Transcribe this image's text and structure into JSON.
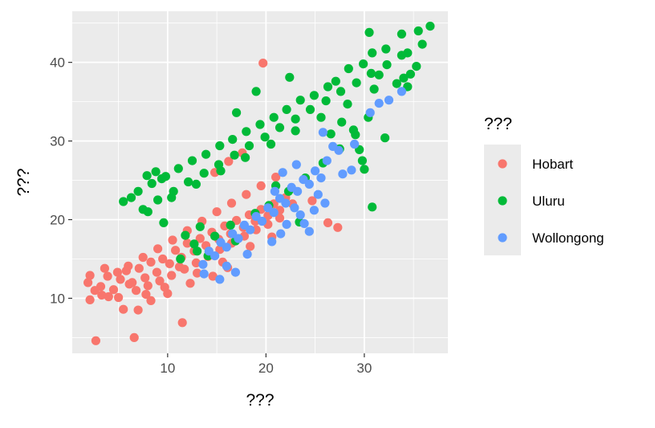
{
  "chart_data": {
    "type": "scatter",
    "title": "",
    "xlabel": "???",
    "ylabel": "???",
    "xlim": [
      0.3,
      38.5
    ],
    "ylim": [
      3.0,
      46.5
    ],
    "x_ticks": [
      10,
      20,
      30
    ],
    "y_ticks": [
      10,
      20,
      30,
      40
    ],
    "grid": true,
    "background": "#ebebeb",
    "legend": {
      "title": "???",
      "position": "right"
    },
    "series": [
      {
        "name": "Hobart",
        "color": "#F8766D",
        "points": [
          [
            2.7,
            4.6
          ],
          [
            6.6,
            5.0
          ],
          [
            11.5,
            6.9
          ],
          [
            5.5,
            8.6
          ],
          [
            2.1,
            9.8
          ],
          [
            7.0,
            8.5
          ],
          [
            4.0,
            10.2
          ],
          [
            3.2,
            11.5
          ],
          [
            1.9,
            12.0
          ],
          [
            2.1,
            12.9
          ],
          [
            8.3,
            9.7
          ],
          [
            19.7,
            39.9
          ],
          [
            27.3,
            19.0
          ],
          [
            26.3,
            19.6
          ],
          [
            24.7,
            22.4
          ],
          [
            6.1,
            11.8
          ],
          [
            3.3,
            10.4
          ],
          [
            3.9,
            12.8
          ],
          [
            4.5,
            11.1
          ],
          [
            5.2,
            12.4
          ],
          [
            5.8,
            13.5
          ],
          [
            6.4,
            12.0
          ],
          [
            7.1,
            13.8
          ],
          [
            7.7,
            12.6
          ],
          [
            8.3,
            14.6
          ],
          [
            8.9,
            13.3
          ],
          [
            9.5,
            15.0
          ],
          [
            10.2,
            14.4
          ],
          [
            10.8,
            16.1
          ],
          [
            11.4,
            15.2
          ],
          [
            12.0,
            17.0
          ],
          [
            12.7,
            16.0
          ],
          [
            13.3,
            17.6
          ],
          [
            13.9,
            16.7
          ],
          [
            14.5,
            18.4
          ],
          [
            15.2,
            17.5
          ],
          [
            15.8,
            19.2
          ],
          [
            16.4,
            18.2
          ],
          [
            17.0,
            19.9
          ],
          [
            17.7,
            19.0
          ],
          [
            18.3,
            20.6
          ],
          [
            18.9,
            19.8
          ],
          [
            19.5,
            21.3
          ],
          [
            20.2,
            20.5
          ],
          [
            20.8,
            22.0
          ],
          [
            21.4,
            21.2
          ],
          [
            22.0,
            22.8
          ],
          [
            22.7,
            22.0
          ],
          [
            5.0,
            10.1
          ],
          [
            6.8,
            11.0
          ],
          [
            8.0,
            11.6
          ],
          [
            9.2,
            12.2
          ],
          [
            10.4,
            12.9
          ],
          [
            11.7,
            13.7
          ],
          [
            12.9,
            14.5
          ],
          [
            14.1,
            15.3
          ],
          [
            15.3,
            16.2
          ],
          [
            16.5,
            17.0
          ],
          [
            17.8,
            17.9
          ],
          [
            19.0,
            18.7
          ],
          [
            20.2,
            19.4
          ],
          [
            21.4,
            20.2
          ],
          [
            7.5,
            15.2
          ],
          [
            9.0,
            16.3
          ],
          [
            10.5,
            17.4
          ],
          [
            12.0,
            18.6
          ],
          [
            13.5,
            19.8
          ],
          [
            15.0,
            21.0
          ],
          [
            16.5,
            22.1
          ],
          [
            18.0,
            23.2
          ],
          [
            19.5,
            24.3
          ],
          [
            21.0,
            25.4
          ],
          [
            14.8,
            26.0
          ],
          [
            16.2,
            27.4
          ],
          [
            17.6,
            28.5
          ],
          [
            11.2,
            14.0
          ],
          [
            13.0,
            13.2
          ],
          [
            15.6,
            14.6
          ],
          [
            18.4,
            16.6
          ],
          [
            20.6,
            17.8
          ],
          [
            9.7,
            11.4
          ],
          [
            3.6,
            13.8
          ],
          [
            4.9,
            13.3
          ],
          [
            6.0,
            14.1
          ],
          [
            2.6,
            11.0
          ],
          [
            7.8,
            10.5
          ],
          [
            10.0,
            10.6
          ],
          [
            12.3,
            11.9
          ],
          [
            14.6,
            12.8
          ],
          [
            16.1,
            13.9
          ]
        ]
      },
      {
        "name": "Uluru",
        "color": "#00BA38",
        "points": [
          [
            36.7,
            44.6
          ],
          [
            35.5,
            44.0
          ],
          [
            35.9,
            42.3
          ],
          [
            34.4,
            41.2
          ],
          [
            33.8,
            43.6
          ],
          [
            32.2,
            41.7
          ],
          [
            30.8,
            41.2
          ],
          [
            31.5,
            38.4
          ],
          [
            29.9,
            39.8
          ],
          [
            28.4,
            39.2
          ],
          [
            27.1,
            37.6
          ],
          [
            26.3,
            36.9
          ],
          [
            24.9,
            35.8
          ],
          [
            23.5,
            35.2
          ],
          [
            22.1,
            34.0
          ],
          [
            20.8,
            33.0
          ],
          [
            19.4,
            32.1
          ],
          [
            18.0,
            31.2
          ],
          [
            16.6,
            30.2
          ],
          [
            15.3,
            29.4
          ],
          [
            13.9,
            28.3
          ],
          [
            12.5,
            27.5
          ],
          [
            11.1,
            26.5
          ],
          [
            9.8,
            25.5
          ],
          [
            8.4,
            24.6
          ],
          [
            7.0,
            23.6
          ],
          [
            6.3,
            22.8
          ],
          [
            5.5,
            22.3
          ],
          [
            7.5,
            21.3
          ],
          [
            9.0,
            22.5
          ],
          [
            10.6,
            23.6
          ],
          [
            12.1,
            24.8
          ],
          [
            13.7,
            25.9
          ],
          [
            15.2,
            27.0
          ],
          [
            16.8,
            28.2
          ],
          [
            18.3,
            29.4
          ],
          [
            19.9,
            30.5
          ],
          [
            21.4,
            31.7
          ],
          [
            23.0,
            32.8
          ],
          [
            24.5,
            34.0
          ],
          [
            26.1,
            35.1
          ],
          [
            27.6,
            36.3
          ],
          [
            29.2,
            37.4
          ],
          [
            30.7,
            38.6
          ],
          [
            32.3,
            39.7
          ],
          [
            33.8,
            40.9
          ],
          [
            35.3,
            39.5
          ],
          [
            34.0,
            38.0
          ],
          [
            31.0,
            36.6
          ],
          [
            28.3,
            34.7
          ],
          [
            25.6,
            33.0
          ],
          [
            23.0,
            31.3
          ],
          [
            20.5,
            29.6
          ],
          [
            17.9,
            27.9
          ],
          [
            15.4,
            26.2
          ],
          [
            12.9,
            24.5
          ],
          [
            10.4,
            22.8
          ],
          [
            8.0,
            21.0
          ],
          [
            9.6,
            19.6
          ],
          [
            11.8,
            18.0
          ],
          [
            13.3,
            19.1
          ],
          [
            14.8,
            17.9
          ],
          [
            16.4,
            19.3
          ],
          [
            18.9,
            20.8
          ],
          [
            21.0,
            24.3
          ],
          [
            8.8,
            26.1
          ],
          [
            9.4,
            25.2
          ],
          [
            7.9,
            25.6
          ],
          [
            30.8,
            21.6
          ],
          [
            30.0,
            26.4
          ],
          [
            29.8,
            27.5
          ],
          [
            29.5,
            28.9
          ],
          [
            32.1,
            30.4
          ],
          [
            34.4,
            36.9
          ],
          [
            34.7,
            38.5
          ],
          [
            33.3,
            37.3
          ],
          [
            30.4,
            33.0
          ],
          [
            28.9,
            31.4
          ],
          [
            27.7,
            32.4
          ],
          [
            26.6,
            30.9
          ],
          [
            11.3,
            15.0
          ],
          [
            13.0,
            16.0
          ],
          [
            14.1,
            15.4
          ],
          [
            16.9,
            17.3
          ],
          [
            12.7,
            16.9
          ],
          [
            23.4,
            19.7
          ],
          [
            20.3,
            21.8
          ],
          [
            22.3,
            23.6
          ],
          [
            24.0,
            25.3
          ],
          [
            25.8,
            27.2
          ],
          [
            27.5,
            29.0
          ],
          [
            29.1,
            30.8
          ],
          [
            19.0,
            36.3
          ],
          [
            17.0,
            33.6
          ],
          [
            22.4,
            38.1
          ],
          [
            30.5,
            43.8
          ]
        ]
      },
      {
        "name": "Wollongong",
        "color": "#619CFF",
        "points": [
          [
            29.0,
            29.6
          ],
          [
            27.4,
            28.8
          ],
          [
            26.8,
            29.3
          ],
          [
            26.2,
            27.5
          ],
          [
            25.6,
            25.3
          ],
          [
            25.0,
            26.2
          ],
          [
            24.4,
            24.5
          ],
          [
            23.8,
            25.1
          ],
          [
            23.2,
            23.6
          ],
          [
            22.6,
            24.1
          ],
          [
            22.0,
            22.1
          ],
          [
            21.4,
            22.7
          ],
          [
            20.8,
            20.9
          ],
          [
            20.2,
            21.5
          ],
          [
            19.6,
            19.8
          ],
          [
            19.0,
            20.4
          ],
          [
            18.4,
            18.7
          ],
          [
            17.8,
            19.3
          ],
          [
            17.2,
            17.6
          ],
          [
            16.6,
            18.2
          ],
          [
            16.0,
            16.5
          ],
          [
            15.4,
            17.1
          ],
          [
            14.8,
            15.4
          ],
          [
            14.2,
            16.0
          ],
          [
            13.6,
            14.3
          ],
          [
            24.4,
            18.5
          ],
          [
            23.9,
            19.5
          ],
          [
            23.5,
            20.6
          ],
          [
            22.9,
            21.5
          ],
          [
            22.1,
            19.4
          ],
          [
            21.5,
            18.2
          ],
          [
            20.6,
            17.2
          ],
          [
            18.1,
            15.6
          ],
          [
            16.9,
            13.3
          ],
          [
            16.0,
            14.1
          ],
          [
            15.3,
            12.4
          ],
          [
            13.7,
            13.1
          ],
          [
            26.0,
            22.1
          ],
          [
            25.3,
            23.2
          ],
          [
            24.9,
            21.2
          ],
          [
            27.8,
            25.8
          ],
          [
            28.7,
            26.3
          ],
          [
            33.8,
            36.3
          ],
          [
            32.5,
            35.2
          ],
          [
            31.5,
            34.8
          ],
          [
            30.6,
            33.6
          ],
          [
            25.8,
            31.1
          ],
          [
            23.1,
            27.0
          ],
          [
            21.7,
            26.0
          ],
          [
            20.9,
            23.6
          ]
        ]
      }
    ]
  }
}
